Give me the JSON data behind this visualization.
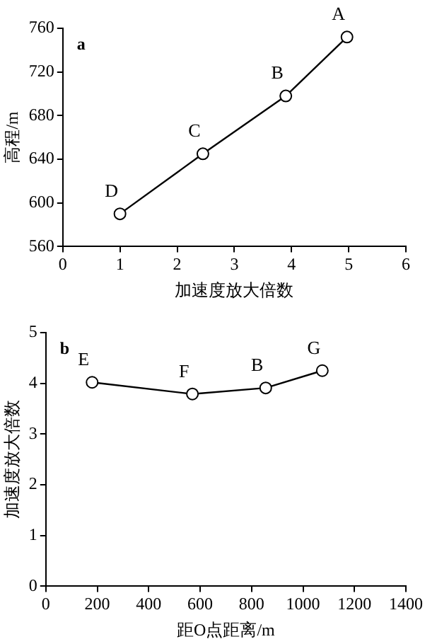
{
  "chart_data": [
    {
      "type": "line",
      "title": "a",
      "xlabel": "加速度放大倍数",
      "ylabel": "高程/m",
      "x": [
        1,
        2.45,
        3.9,
        4.97
      ],
      "series": [
        {
          "color": "#000000",
          "values": [
            590,
            645,
            698,
            752
          ]
        }
      ],
      "xlim": [
        0,
        6
      ],
      "xticks": [
        0,
        1,
        2,
        3,
        4,
        5,
        6
      ],
      "ylim": [
        560,
        760
      ],
      "yticks": [
        560,
        600,
        640,
        680,
        720,
        760
      ],
      "marker": "circle",
      "line_style": "solid",
      "grid": false,
      "legend": false,
      "annotations": [
        {
          "text": "D",
          "x": 1,
          "y": 590
        },
        {
          "text": "C",
          "x": 2.45,
          "y": 645
        },
        {
          "text": "B",
          "x": 3.9,
          "y": 698
        },
        {
          "text": "A",
          "x": 4.97,
          "y": 752
        }
      ]
    },
    {
      "type": "line",
      "title": "b",
      "xlabel": "距O点距离/m",
      "ylabel": "加速度放大倍数",
      "x": [
        180,
        570,
        855,
        1075
      ],
      "series": [
        {
          "color": "#000000",
          "values": [
            4.02,
            3.79,
            3.91,
            4.25
          ]
        }
      ],
      "xlim": [
        0,
        1400
      ],
      "xticks": [
        0,
        200,
        400,
        600,
        800,
        1000,
        1200,
        1400
      ],
      "ylim": [
        0,
        5
      ],
      "yticks": [
        0,
        1,
        2,
        3,
        4,
        5
      ],
      "marker": "circle",
      "line_style": "solid",
      "grid": false,
      "legend": false,
      "annotations": [
        {
          "text": "E",
          "x": 180,
          "y": 4.02
        },
        {
          "text": "F",
          "x": 570,
          "y": 3.79
        },
        {
          "text": "B",
          "x": 855,
          "y": 3.91
        },
        {
          "text": "G",
          "x": 1075,
          "y": 4.25
        }
      ]
    }
  ]
}
